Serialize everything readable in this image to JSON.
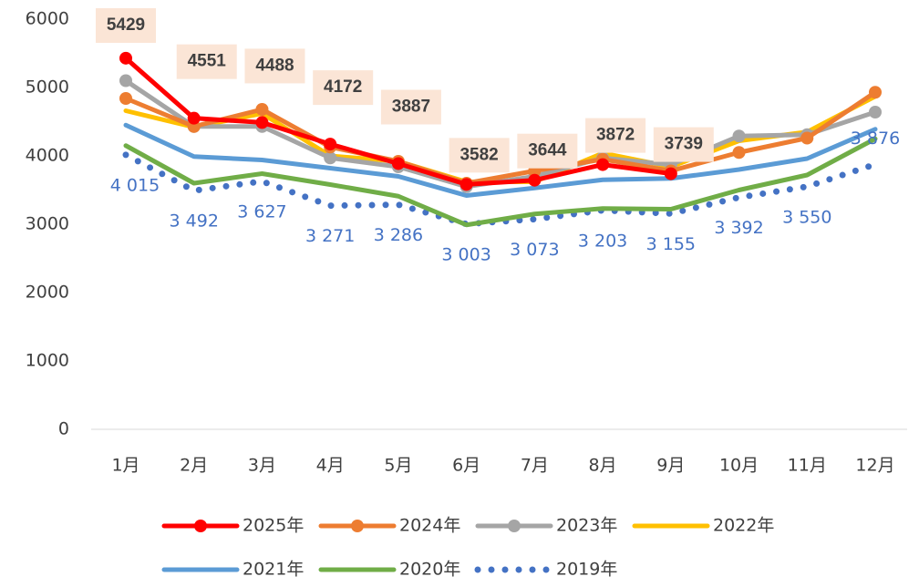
{
  "chart_data": {
    "type": "line",
    "categories": [
      "1月",
      "2月",
      "3月",
      "4月",
      "5月",
      "6月",
      "7月",
      "8月",
      "9月",
      "10月",
      "11月",
      "12月"
    ],
    "series": [
      {
        "name": "2025年",
        "color": "#ff0000",
        "marker": "circle",
        "values": [
          5429,
          4551,
          4488,
          4172,
          3887,
          3582,
          3644,
          3872,
          3739,
          null,
          null,
          null
        ],
        "show_labels": true
      },
      {
        "name": "2024年",
        "color": "#ed7d31",
        "marker": "circle",
        "values": [
          4840,
          4430,
          4680,
          4130,
          3920,
          3600,
          3780,
          3950,
          3780,
          4050,
          4260,
          4930
        ]
      },
      {
        "name": "2023年",
        "color": "#a5a5a5",
        "marker": "circle",
        "values": [
          5100,
          4430,
          4430,
          3970,
          3840,
          3550,
          3700,
          3970,
          3870,
          4290,
          4310,
          4640
        ]
      },
      {
        "name": "2022年",
        "color": "#ffc000",
        "values": [
          4660,
          4420,
          4620,
          4000,
          3920,
          3620,
          3620,
          4040,
          3840,
          4220,
          4350,
          4870
        ]
      },
      {
        "name": "2021年",
        "color": "#5b9bd5",
        "values": [
          4450,
          3990,
          3940,
          3820,
          3700,
          3420,
          3530,
          3650,
          3670,
          3800,
          3960,
          4390
        ]
      },
      {
        "name": "2020年",
        "color": "#70ad47",
        "values": [
          4150,
          3600,
          3740,
          3580,
          3410,
          2990,
          3150,
          3230,
          3220,
          3500,
          3720,
          4250
        ]
      },
      {
        "name": "2019年",
        "color": "#4472c4",
        "dash": "dot",
        "values": [
          4015,
          3492,
          3627,
          3271,
          3286,
          3003,
          3073,
          3203,
          3155,
          3392,
          3550,
          3876
        ],
        "value_labels": [
          "4 015",
          "3 492",
          "3 627",
          "3 271",
          "3 286",
          "3 003",
          "3 073",
          "3 203",
          "3 155",
          "3 392",
          "3 550",
          "3 876"
        ]
      }
    ],
    "ylim": [
      0,
      6000
    ],
    "yticks": [
      0,
      1000,
      2000,
      3000,
      4000,
      5000,
      6000
    ],
    "legend": "bottom"
  }
}
